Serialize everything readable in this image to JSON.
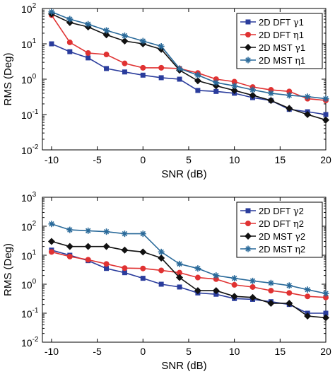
{
  "chart_data": [
    {
      "type": "line",
      "title": "",
      "xlabel": "SNR (dB)",
      "ylabel": "RMS (Deg)",
      "yscale": "log",
      "xlim": [
        -11,
        20
      ],
      "ylim": [
        0.01,
        100
      ],
      "xticks": [
        -10,
        -5,
        0,
        5,
        10,
        15,
        20
      ],
      "yticks": [
        0.01,
        0.1,
        1,
        10,
        100
      ],
      "ytick_labels": [
        [
          "10",
          "-2"
        ],
        [
          "10",
          "-1"
        ],
        [
          "10",
          "0"
        ],
        [
          "10",
          "1"
        ],
        [
          "10",
          "2"
        ]
      ],
      "grid": false,
      "legend_position": "top-right",
      "x": [
        -10,
        -8,
        -6,
        -4,
        -2,
        0,
        2,
        4,
        6,
        8,
        10,
        12,
        14,
        16,
        18,
        20
      ],
      "series": [
        {
          "name": "2D DFT γ1",
          "legend_main": "2D DFT ",
          "legend_sym": "γ",
          "legend_idx": "1",
          "color": "#2a3c9c",
          "marker": "square",
          "values": [
            10,
            6,
            4,
            2,
            1.6,
            1.3,
            1.1,
            1.0,
            0.48,
            0.45,
            0.4,
            0.3,
            0.25,
            0.14,
            0.12,
            0.1
          ]
        },
        {
          "name": "2D DFT η1",
          "legend_main": "2D DFT ",
          "legend_sym": "η",
          "legend_idx": "1",
          "color": "#e03232",
          "marker": "circle",
          "values": [
            65,
            11,
            5.5,
            5,
            2.8,
            2.1,
            2.1,
            2.0,
            1.5,
            1.0,
            0.85,
            0.6,
            0.5,
            0.45,
            0.28,
            0.25
          ]
        },
        {
          "name": "2D MST γ1",
          "legend_main": "2D MST ",
          "legend_sym": "γ",
          "legend_idx": "1",
          "color": "#111111",
          "marker": "diamond",
          "values": [
            70,
            40,
            30,
            18,
            12,
            10,
            7,
            1.8,
            0.9,
            0.65,
            0.48,
            0.35,
            0.25,
            0.15,
            0.1,
            0.07
          ]
        },
        {
          "name": "2D MST η1",
          "legend_main": "2D MST ",
          "legend_sym": "η",
          "legend_idx": "1",
          "color": "#2a6a9a",
          "marker": "star",
          "values": [
            80,
            50,
            36,
            24,
            17,
            12,
            8.5,
            2.0,
            1.3,
            0.8,
            0.65,
            0.5,
            0.4,
            0.35,
            0.32,
            0.28
          ]
        }
      ]
    },
    {
      "type": "line",
      "title": "",
      "xlabel": "SNR (dB)",
      "ylabel": "RMS (Deg)",
      "yscale": "log",
      "xlim": [
        -11,
        20
      ],
      "ylim": [
        0.01,
        1000
      ],
      "xticks": [
        -10,
        -5,
        0,
        5,
        10,
        15,
        20
      ],
      "yticks": [
        0.01,
        0.1,
        1,
        10,
        100,
        1000
      ],
      "ytick_labels": [
        [
          "10",
          "-2"
        ],
        [
          "10",
          "-1"
        ],
        [
          "10",
          "0"
        ],
        [
          "10",
          "1"
        ],
        [
          "10",
          "2"
        ],
        [
          "10",
          "3"
        ]
      ],
      "grid": false,
      "legend_position": "top-right",
      "x": [
        -10,
        -8,
        -6,
        -4,
        -2,
        0,
        2,
        4,
        6,
        8,
        10,
        12,
        14,
        16,
        18,
        20
      ],
      "series": [
        {
          "name": "2D DFT γ2",
          "legend_main": "2D DFT ",
          "legend_sym": "γ",
          "legend_idx": "2",
          "color": "#2a3c9c",
          "marker": "square",
          "values": [
            15,
            10,
            6.5,
            3.5,
            2.5,
            1.6,
            1.0,
            0.8,
            0.5,
            0.45,
            0.32,
            0.3,
            0.25,
            0.2,
            0.1,
            0.1
          ]
        },
        {
          "name": "2D DFT η2",
          "legend_main": "2D DFT ",
          "legend_sym": "η",
          "legend_idx": "2",
          "color": "#e03232",
          "marker": "circle",
          "values": [
            13,
            9,
            7,
            5,
            3.6,
            3.5,
            3.0,
            2.5,
            1.7,
            1.5,
            0.95,
            0.8,
            0.6,
            0.5,
            0.38,
            0.35
          ]
        },
        {
          "name": "2D MST γ2",
          "legend_main": "2D MST ",
          "legend_sym": "γ",
          "legend_idx": "2",
          "color": "#111111",
          "marker": "diamond",
          "values": [
            30,
            20,
            20,
            20,
            15,
            13,
            8,
            1.7,
            0.6,
            0.6,
            0.38,
            0.35,
            0.22,
            0.22,
            0.08,
            0.07
          ]
        },
        {
          "name": "2D MST η2",
          "legend_main": "2D MST ",
          "legend_sym": "η",
          "legend_idx": "2",
          "color": "#2a6a9a",
          "marker": "star",
          "values": [
            120,
            75,
            70,
            65,
            55,
            55,
            13,
            5,
            3.5,
            2.0,
            1.6,
            1.3,
            1.1,
            0.9,
            0.65,
            0.48
          ]
        }
      ]
    }
  ]
}
